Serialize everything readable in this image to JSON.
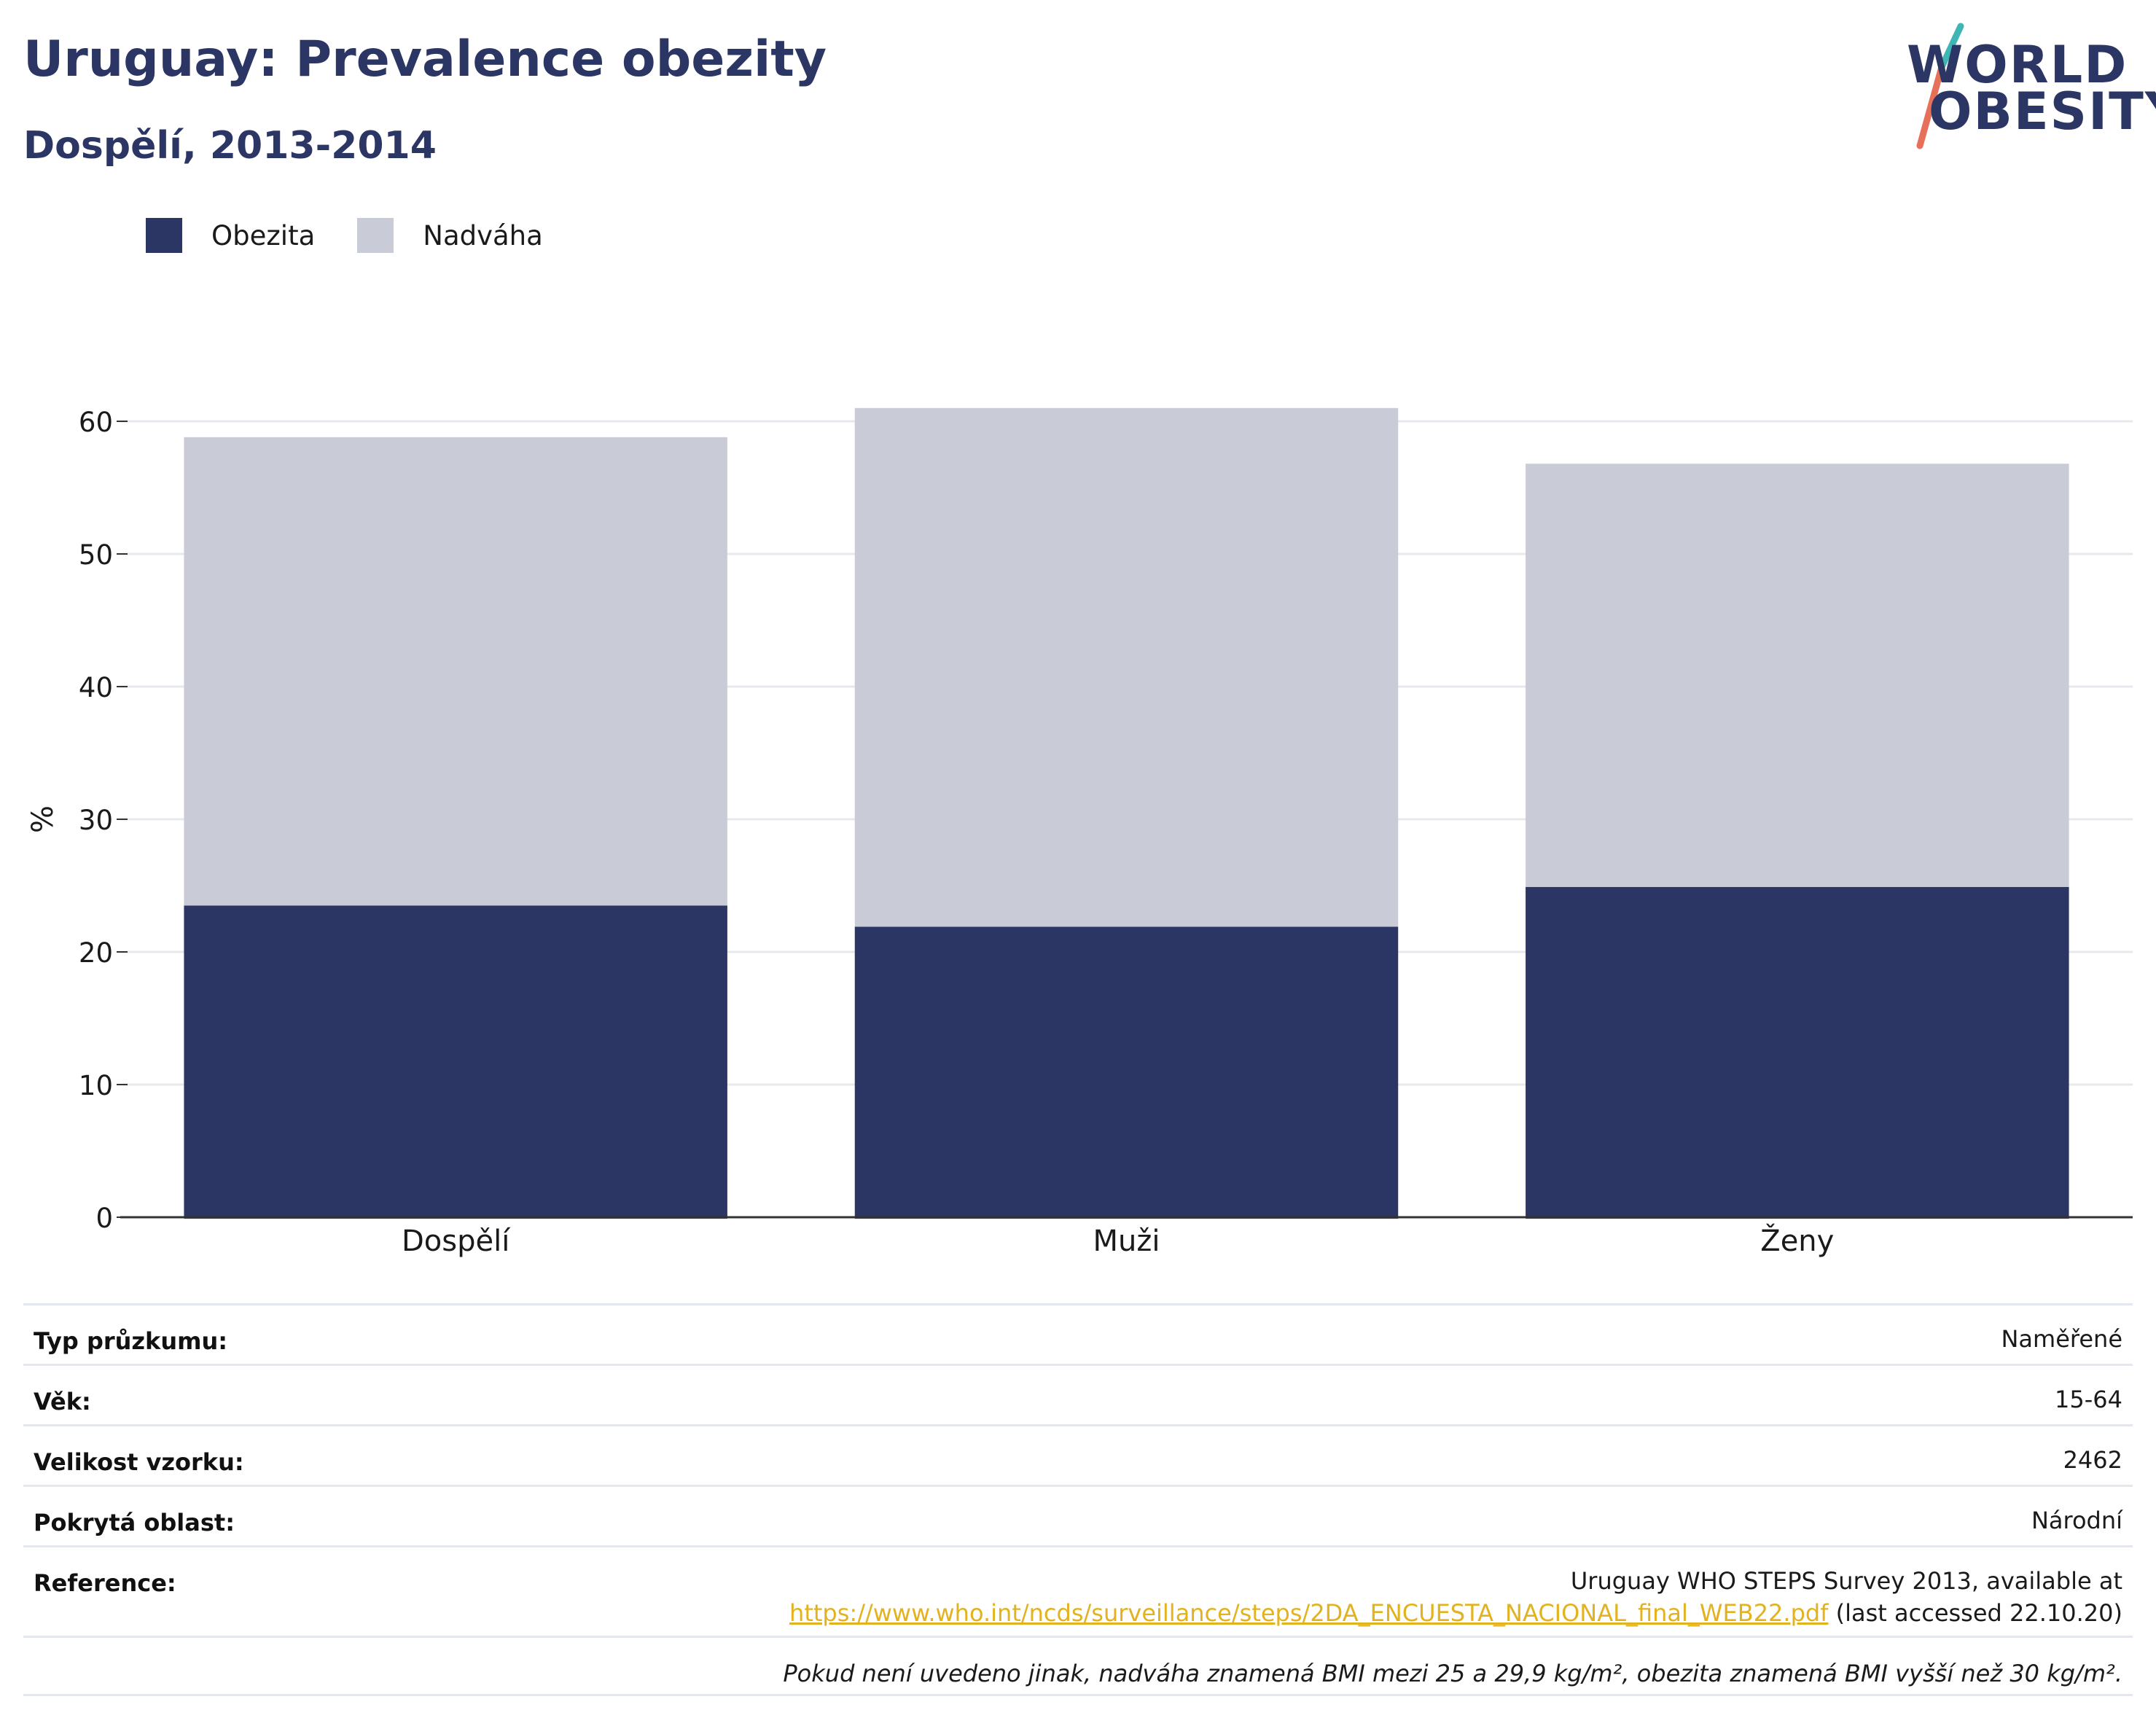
{
  "header": {
    "title": "Uruguay: Prevalence obezity",
    "subtitle": "Dospělí, 2013-2014"
  },
  "logo": {
    "line1": "WORLD",
    "line2": "OBESITY",
    "colors": {
      "text": "#2b3664",
      "accent_teal": "#3fb5b5",
      "accent_coral": "#e6705a"
    }
  },
  "legend": [
    {
      "label": "Obezita",
      "color": "#2b3664"
    },
    {
      "label": "Nadváha",
      "color": "#c9cbd6"
    }
  ],
  "chart_data": {
    "type": "bar",
    "stacked": true,
    "categories": [
      "Dospělí",
      "Muži",
      "Ženy"
    ],
    "series": [
      {
        "name": "Obezita",
        "color": "#2b3664",
        "values": [
          23.5,
          21.9,
          24.9
        ]
      },
      {
        "name": "Nadváha",
        "color": "#c9cbd6",
        "values": [
          35.3,
          39.1,
          31.9
        ]
      }
    ],
    "xlabel": "",
    "ylabel": "%",
    "ylim": [
      0,
      60
    ],
    "yticks": [
      0,
      10,
      20,
      30,
      40,
      50,
      60
    ],
    "grid": true,
    "legend_position": "top-left"
  },
  "info": {
    "survey_type": {
      "label": "Typ průzkumu:",
      "value": "Naměřené"
    },
    "age": {
      "label": "Věk:",
      "value": "15-64"
    },
    "sample_size": {
      "label": "Velikost vzorku:",
      "value": "2462"
    },
    "area": {
      "label": "Pokrytá oblast:",
      "value": "Národní"
    },
    "reference": {
      "label": "Reference:",
      "line1": "Uruguay WHO STEPS Survey 2013, available at",
      "link": "https://www.who.int/ncds/surveillance/steps/2DA_ENCUESTA_NACIONAL_final_WEB22.pdf",
      "suffix": " (last accessed 22.10.20)"
    },
    "note": "Pokud není uvedeno jinak, nadváha znamená BMI mezi 25 a 29,9 kg/m², obezita znamená BMI vyšší než 30 kg/m²."
  }
}
